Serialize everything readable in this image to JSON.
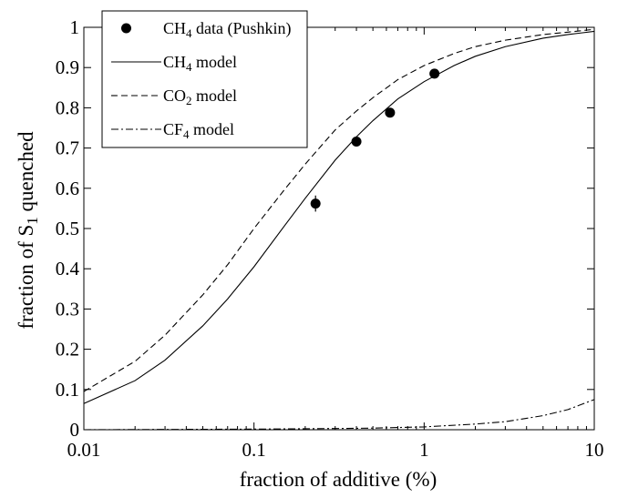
{
  "chart_data": {
    "type": "line",
    "title": "",
    "xlabel": "fraction of additive (%)",
    "ylabel": "fraction of S1 quenched",
    "ylabel_parts": {
      "base": "fraction of S",
      "sub": "1",
      "rest": " quenched"
    },
    "xscale": "log",
    "xlim": [
      0.01,
      10
    ],
    "ylim": [
      0,
      1
    ],
    "x_ticks": [
      0.01,
      0.1,
      1,
      10
    ],
    "x_tick_labels": [
      "0.01",
      "0.1",
      "1",
      "10"
    ],
    "y_ticks": [
      0,
      0.1,
      0.2,
      0.3,
      0.4,
      0.5,
      0.6,
      0.7,
      0.8,
      0.9,
      1
    ],
    "y_tick_labels": [
      "0",
      "0.1",
      "0.2",
      "0.3",
      "0.4",
      "0.5",
      "0.6",
      "0.7",
      "0.8",
      "0.9",
      "1"
    ],
    "grid": false,
    "legend_position": "top-left",
    "series": [
      {
        "name": "CH4 data (Pushkin)",
        "label_parts": {
          "base": "CH",
          "sub": "4",
          "rest": " data (Pushkin)"
        },
        "kind": "points",
        "marker": "filled-circle",
        "x": [
          0.23,
          0.4,
          0.63,
          1.15
        ],
        "y": [
          0.562,
          0.716,
          0.788,
          0.885
        ],
        "yerr": [
          0.02,
          0.008,
          0.008,
          0.006
        ]
      },
      {
        "name": "CH4 model",
        "label_parts": {
          "base": "CH",
          "sub": "4",
          "rest": " model"
        },
        "kind": "line",
        "style": "solid",
        "x": [
          0.01,
          0.02,
          0.03,
          0.05,
          0.07,
          0.1,
          0.15,
          0.2,
          0.3,
          0.4,
          0.5,
          0.7,
          1,
          1.5,
          2,
          3,
          5,
          7,
          10
        ],
        "y": [
          0.065,
          0.122,
          0.173,
          0.258,
          0.325,
          0.405,
          0.505,
          0.575,
          0.67,
          0.728,
          0.768,
          0.822,
          0.865,
          0.905,
          0.928,
          0.952,
          0.973,
          0.982,
          0.99
        ]
      },
      {
        "name": "CO2 model",
        "label_parts": {
          "base": "CO",
          "sub": "2",
          "rest": " model"
        },
        "kind": "line",
        "style": "dashed",
        "x": [
          0.01,
          0.02,
          0.03,
          0.05,
          0.07,
          0.1,
          0.15,
          0.2,
          0.3,
          0.4,
          0.5,
          0.7,
          1,
          1.5,
          2,
          3,
          5,
          7,
          10
        ],
        "y": [
          0.095,
          0.17,
          0.235,
          0.335,
          0.41,
          0.5,
          0.595,
          0.66,
          0.745,
          0.792,
          0.825,
          0.87,
          0.905,
          0.935,
          0.952,
          0.968,
          0.982,
          0.988,
          0.995
        ]
      },
      {
        "name": "CF4 model",
        "label_parts": {
          "base": "CF",
          "sub": "4",
          "rest": " model"
        },
        "kind": "line",
        "style": "dashdot",
        "x": [
          0.01,
          0.1,
          0.3,
          0.5,
          1,
          2,
          3,
          5,
          7,
          10
        ],
        "y": [
          0.0,
          0.0015,
          0.003,
          0.004,
          0.007,
          0.014,
          0.02,
          0.035,
          0.05,
          0.075
        ]
      }
    ]
  },
  "colors": {
    "ink": "#000000",
    "background": "#ffffff"
  }
}
